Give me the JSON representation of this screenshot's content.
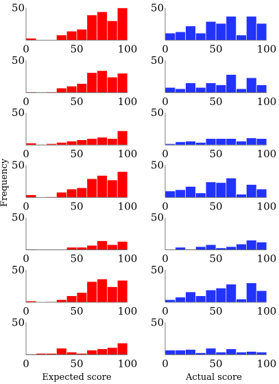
{
  "chart_data": {
    "type": "bar",
    "x_bins": [
      0,
      10,
      20,
      30,
      40,
      50,
      60,
      70,
      80,
      90
    ],
    "bin_width": 10,
    "xlim": [
      0,
      100
    ],
    "ylim": [
      0,
      50
    ],
    "x_ticks": [
      "0",
      "50",
      "100"
    ],
    "y_tick": "50",
    "ylabel": "Frequency",
    "xlabel_left": "Expected score",
    "xlabel_right": "Actual score",
    "colors": {
      "expected": "#ff0000",
      "actual": "#2233ff"
    },
    "rows": [
      {
        "expected": [
          3,
          0,
          0,
          8,
          14,
          17,
          39,
          44,
          30,
          50
        ],
        "actual": [
          11,
          13,
          22,
          11,
          29,
          26,
          37,
          8,
          37,
          26
        ]
      },
      {
        "expected": [
          1,
          0,
          1,
          7,
          10,
          14,
          31,
          34,
          24,
          30
        ],
        "actual": [
          8,
          6,
          15,
          8,
          15,
          12,
          28,
          6,
          23,
          12
        ]
      },
      {
        "expected": [
          3,
          1,
          2,
          4,
          6,
          8,
          10,
          12,
          10,
          22
        ],
        "actual": [
          2,
          5,
          6,
          4,
          10,
          10,
          10,
          6,
          11,
          10
        ]
      },
      {
        "expected": [
          4,
          0,
          1,
          8,
          13,
          15,
          29,
          34,
          27,
          40
        ],
        "actual": [
          10,
          12,
          17,
          7,
          24,
          23,
          30,
          5,
          20,
          13
        ]
      },
      {
        "expected": [
          1,
          0,
          0,
          0,
          4,
          4,
          7,
          14,
          8,
          13
        ],
        "actual": [
          0,
          4,
          1,
          5,
          8,
          3,
          5,
          9,
          15,
          12
        ]
      },
      {
        "expected": [
          2,
          0,
          1,
          4,
          10,
          15,
          32,
          36,
          24,
          34
        ],
        "actual": [
          4,
          8,
          16,
          10,
          19,
          22,
          28,
          5,
          30,
          18
        ]
      },
      {
        "expected": [
          1,
          2,
          2,
          10,
          4,
          2,
          7,
          9,
          11,
          18
        ],
        "actual": [
          7,
          7,
          8,
          3,
          10,
          4,
          9,
          4,
          5,
          4
        ]
      }
    ]
  }
}
